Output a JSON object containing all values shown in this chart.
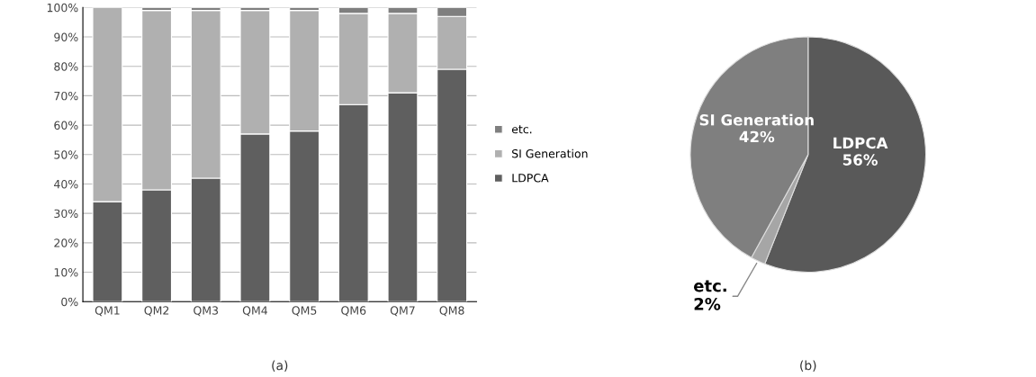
{
  "chart_data": [
    {
      "type": "bar",
      "stacked": true,
      "categories": [
        "QM1",
        "QM2",
        "QM3",
        "QM4",
        "QM5",
        "QM6",
        "QM7",
        "QM8"
      ],
      "series": [
        {
          "name": "LDPCA",
          "color": "#5f5f5f",
          "values": [
            34,
            38,
            42,
            57,
            58,
            67,
            71,
            79
          ]
        },
        {
          "name": "SI Generation",
          "color": "#b0b0b0",
          "values": [
            66,
            61,
            57,
            42,
            41,
            31,
            27,
            18
          ]
        },
        {
          "name": "etc.",
          "color": "#7f7f7f",
          "values": [
            null,
            1,
            1,
            1,
            1,
            2,
            2,
            3
          ]
        }
      ],
      "ylim": [
        0,
        100
      ],
      "yticks": [
        {
          "value": 0,
          "label": "0%"
        },
        {
          "value": 10,
          "label": "10%"
        },
        {
          "value": 20,
          "label": "20%"
        },
        {
          "value": 30,
          "label": "30%"
        },
        {
          "value": 40,
          "label": "40%"
        },
        {
          "value": 50,
          "label": "50%"
        },
        {
          "value": 60,
          "label": "60%"
        },
        {
          "value": 70,
          "label": "70%"
        },
        {
          "value": 80,
          "label": "80%"
        },
        {
          "value": 90,
          "label": "90%"
        },
        {
          "value": 100,
          "label": "100%"
        }
      ],
      "grid": "y",
      "legend": "right",
      "annotations": [
        "(a)"
      ]
    },
    {
      "type": "pie",
      "categories": [
        "LDPCA",
        "etc.",
        "SI Generation"
      ],
      "values": [
        56,
        2,
        42
      ],
      "value_labels": [
        "56%",
        "2%",
        "42%"
      ],
      "colors": [
        "#595959",
        "#a6a6a6",
        "#7f7f7f"
      ],
      "annotations": [
        "(b)"
      ]
    }
  ]
}
